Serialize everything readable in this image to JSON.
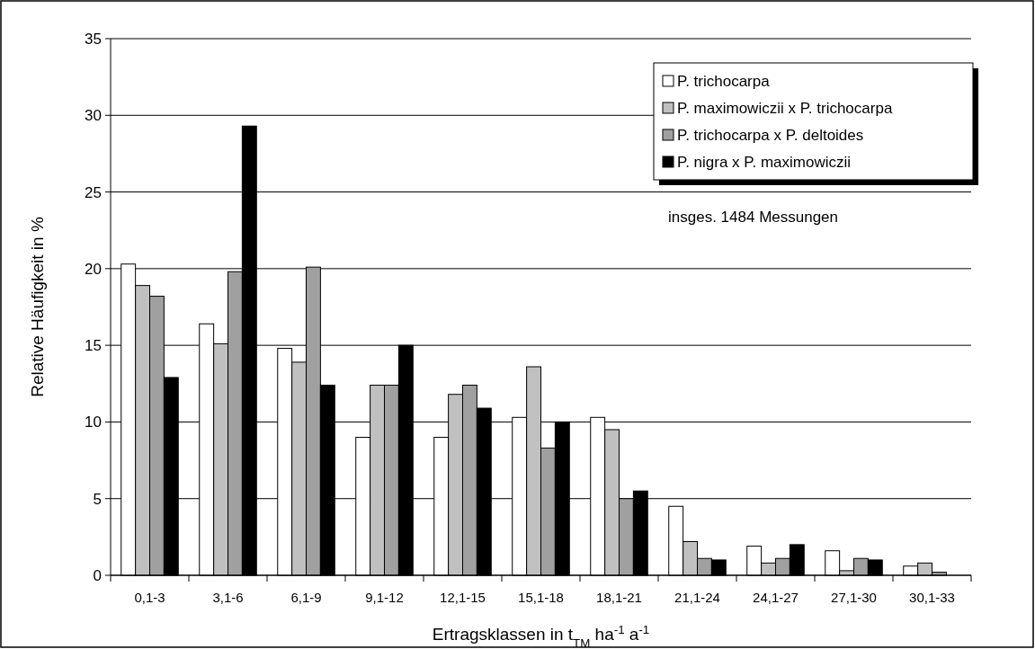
{
  "chart_data": {
    "type": "bar",
    "xlabel": "Ertragsklassen in t$_{TM}$ ha$^{-1}$ a$^{-1}$",
    "ylabel": "Relative Häufigkeit in %",
    "categories": [
      "0,1-3",
      "3,1-6",
      "6,1-9",
      "9,1-12",
      "12,1-15",
      "15,1-18",
      "18,1-21",
      "21,1-24",
      "24,1-27",
      "27,1-30",
      "30,1-33"
    ],
    "series": [
      {
        "name": "P. trichocarpa",
        "color": "#ffffff",
        "values": [
          20.3,
          16.4,
          14.8,
          9.0,
          9.0,
          10.3,
          10.3,
          4.5,
          1.9,
          1.6,
          0.6
        ]
      },
      {
        "name": "P. maximowiczii x P. trichocarpa",
        "color": "#c0c0c0",
        "values": [
          18.9,
          15.1,
          13.9,
          12.4,
          11.8,
          13.6,
          9.5,
          2.2,
          0.8,
          0.3,
          0.8
        ]
      },
      {
        "name": "P. trichocarpa x P. deltoides",
        "color": "#a0a0a0",
        "values": [
          18.2,
          19.8,
          20.1,
          12.4,
          12.4,
          8.3,
          5.0,
          1.1,
          1.1,
          1.1,
          0.2
        ]
      },
      {
        "name": "P. nigra x P. maximowiczii",
        "color": "#000000",
        "values": [
          12.9,
          29.3,
          12.4,
          15.0,
          10.9,
          10.0,
          5.5,
          1.0,
          2.0,
          1.0,
          null
        ]
      }
    ],
    "ylim": [
      0,
      35
    ],
    "yticks": [
      0,
      5,
      10,
      15,
      20,
      25,
      30,
      35
    ],
    "grid": "y",
    "legend": "top right",
    "annotations": [
      "insges. 1484 Messungen"
    ]
  }
}
